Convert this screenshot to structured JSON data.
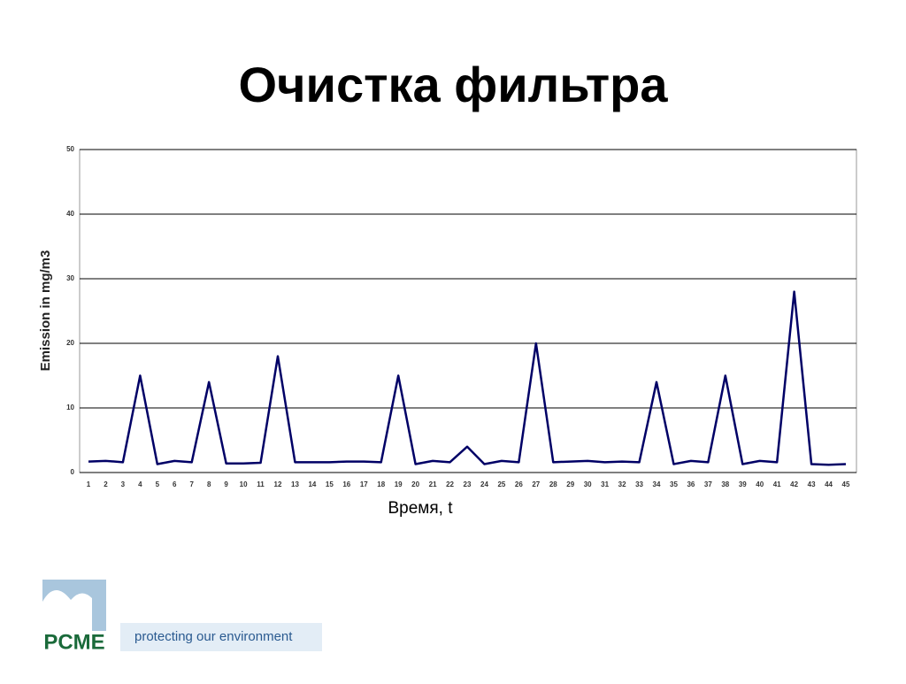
{
  "chart_data": {
    "type": "line",
    "title": "Очистка фильтра",
    "y_label": "Emission in mg/m3",
    "x_label": "Время, t",
    "categories": [
      1,
      2,
      3,
      4,
      5,
      6,
      7,
      8,
      9,
      10,
      11,
      12,
      13,
      14,
      15,
      16,
      17,
      18,
      19,
      20,
      21,
      22,
      23,
      24,
      25,
      26,
      27,
      28,
      29,
      30,
      31,
      32,
      33,
      34,
      35,
      36,
      37,
      38,
      39,
      40,
      41,
      42,
      43,
      44,
      45
    ],
    "values": [
      1.7,
      1.8,
      1.6,
      15,
      1.3,
      1.8,
      1.6,
      14,
      1.4,
      1.4,
      1.5,
      18,
      1.6,
      1.6,
      1.6,
      1.7,
      1.7,
      1.6,
      15,
      1.3,
      1.8,
      1.6,
      4,
      1.3,
      1.8,
      1.6,
      20,
      1.6,
      1.7,
      1.8,
      1.6,
      1.7,
      1.6,
      14,
      1.3,
      1.8,
      1.6,
      15,
      1.3,
      1.8,
      1.6,
      28,
      1.3,
      1.2,
      1.3
    ],
    "color": "#000066",
    "ylim": [
      0,
      50
    ],
    "yticks": [
      0,
      10,
      20,
      30,
      40,
      50
    ],
    "grid": true
  },
  "footer": {
    "logo": "PCME",
    "tagline": "protecting our environment"
  }
}
